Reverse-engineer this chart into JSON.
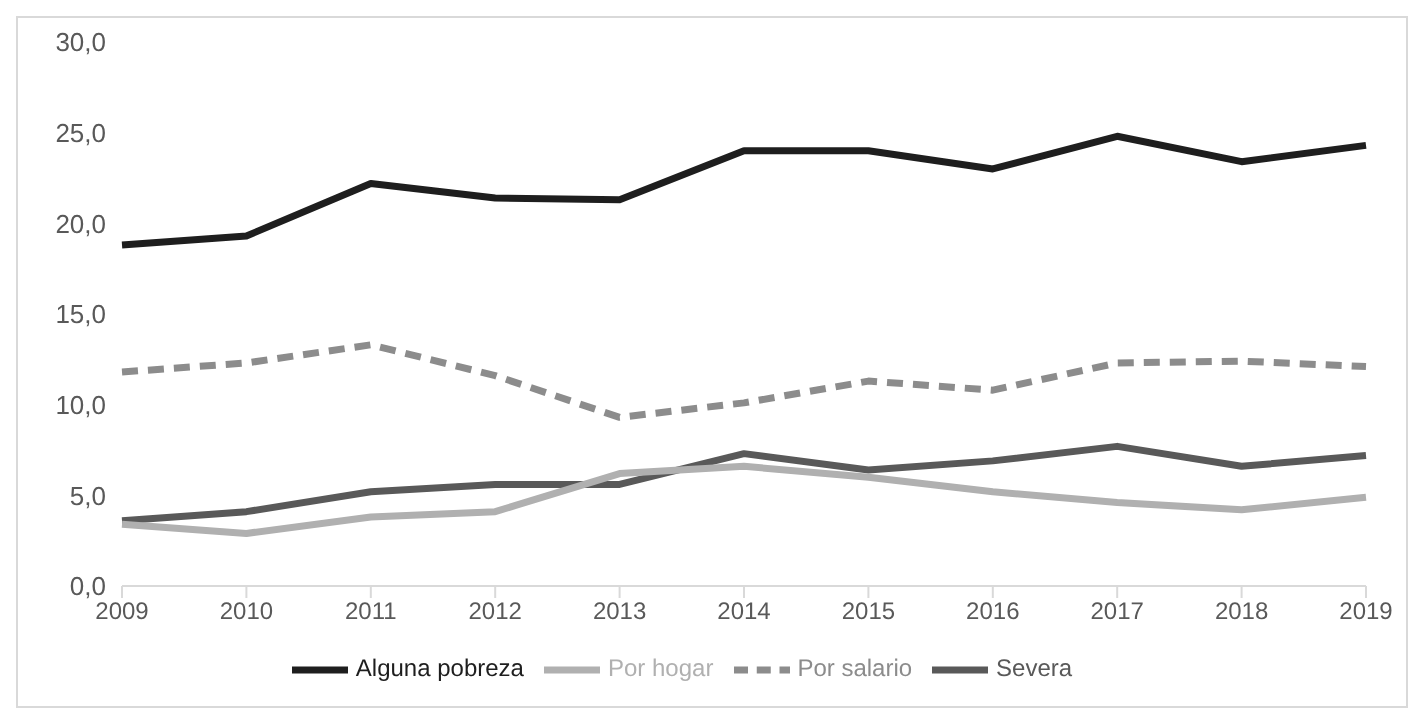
{
  "chart_data": {
    "type": "line",
    "categories": [
      "2009",
      "2010",
      "2011",
      "2012",
      "2013",
      "2014",
      "2015",
      "2016",
      "2017",
      "2018",
      "2019"
    ],
    "series": [
      {
        "name": "Severa",
        "color": "#595959",
        "values": [
          3.6,
          4.1,
          5.2,
          5.6,
          5.6,
          7.3,
          6.4,
          6.9,
          7.7,
          6.6,
          7.2
        ]
      },
      {
        "name": "Por hogar",
        "color": "#b0b0b0",
        "values": [
          3.4,
          2.9,
          3.8,
          4.1,
          6.2,
          6.6,
          6.0,
          5.2,
          4.6,
          4.2,
          4.9
        ]
      },
      {
        "name": "Por salario",
        "color": "#8c8c8c",
        "line_style": "dashed",
        "values": [
          11.8,
          12.3,
          13.3,
          11.6,
          9.3,
          10.1,
          11.3,
          10.8,
          12.3,
          12.4,
          12.1
        ]
      },
      {
        "name": "Alguna pobreza",
        "color": "#1e1e1e",
        "values": [
          18.8,
          19.3,
          22.2,
          21.4,
          21.3,
          24.0,
          24.0,
          23.0,
          24.8,
          23.4,
          24.3
        ]
      }
    ],
    "ylim": [
      0,
      30
    ],
    "yticks": [
      {
        "value": 0,
        "label": "0,0"
      },
      {
        "value": 5,
        "label": "5,0"
      },
      {
        "value": 10,
        "label": "10,0"
      },
      {
        "value": 15,
        "label": "15,0"
      },
      {
        "value": 20,
        "label": "20,0"
      },
      {
        "value": 25,
        "label": "25,0"
      },
      {
        "value": 30,
        "label": "30,0"
      }
    ],
    "grid": false,
    "legend": "bottom",
    "marker": "none",
    "line_style": "solid"
  }
}
